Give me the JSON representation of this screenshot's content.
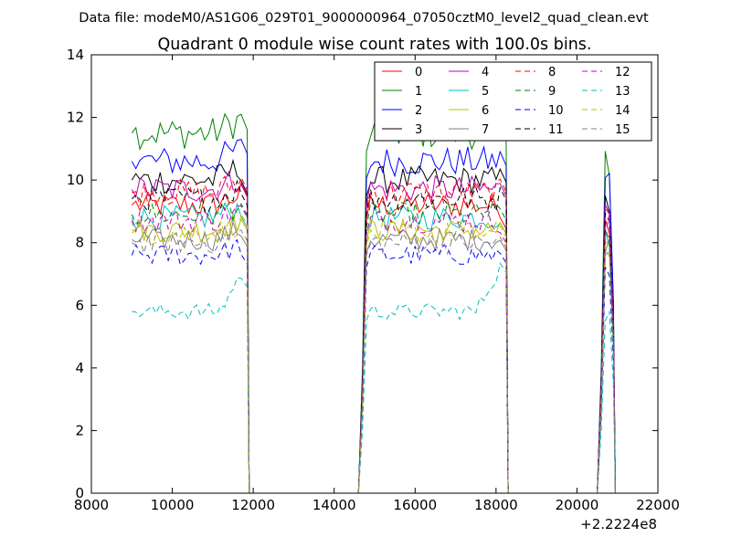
{
  "suptitle": "Data file: modeM0/AS1G06_029T01_9000000964_07050cztM0_level2_quad_clean.evt",
  "chart_data": {
    "type": "line",
    "title": "Quadrant 0 module wise count rates with 100.0s bins.",
    "xlabel": "",
    "ylabel": "",
    "x_offset_label": "+2.2224e8",
    "xlim": [
      8000,
      22000
    ],
    "ylim": [
      0,
      14
    ],
    "xticks": [
      8000,
      10000,
      12000,
      14000,
      16000,
      18000,
      20000,
      22000
    ],
    "yticks": [
      0,
      2,
      4,
      6,
      8,
      10,
      12,
      14
    ],
    "grid": false,
    "legend_location": "top-right",
    "legend_columns": 4,
    "segments": [
      [
        9000,
        11900
      ],
      [
        14700,
        18300
      ],
      [
        20600,
        20950
      ]
    ],
    "series": [
      {
        "name": "0",
        "color": "#ff0000",
        "dashed": false,
        "level": 9.2
      },
      {
        "name": "1",
        "color": "#008000",
        "dashed": false,
        "level": 11.5
      },
      {
        "name": "2",
        "color": "#0000ff",
        "dashed": false,
        "level": 10.6
      },
      {
        "name": "3",
        "color": "#000000",
        "dashed": false,
        "level": 10.0
      },
      {
        "name": "4",
        "color": "#bf00bf",
        "dashed": false,
        "level": 9.7
      },
      {
        "name": "5",
        "color": "#00bfbf",
        "dashed": false,
        "level": 8.8
      },
      {
        "name": "6",
        "color": "#bfbf00",
        "dashed": false,
        "level": 8.4
      },
      {
        "name": "7",
        "color": "#808080",
        "dashed": false,
        "level": 8.1
      },
      {
        "name": "8",
        "color": "#ff0000",
        "dashed": true,
        "level": 9.6
      },
      {
        "name": "9",
        "color": "#008000",
        "dashed": true,
        "level": 8.9
      },
      {
        "name": "10",
        "color": "#0000ff",
        "dashed": true,
        "level": 7.6
      },
      {
        "name": "11",
        "color": "#000000",
        "dashed": true,
        "level": 9.4
      },
      {
        "name": "12",
        "color": "#bf00bf",
        "dashed": true,
        "level": 8.7
      },
      {
        "name": "13",
        "color": "#00bfbf",
        "dashed": true,
        "level": 5.8
      },
      {
        "name": "14",
        "color": "#bfbf00",
        "dashed": true,
        "level": 8.3
      },
      {
        "name": "15",
        "color": "#808080",
        "dashed": true,
        "level": 8.0
      }
    ]
  }
}
